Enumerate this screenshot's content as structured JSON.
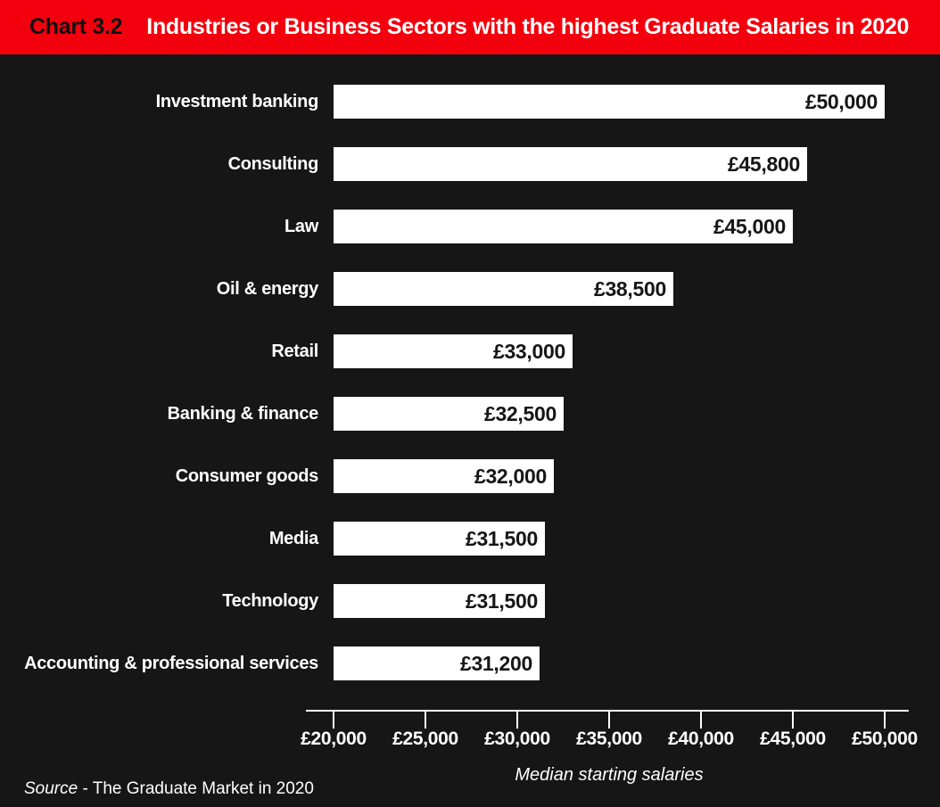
{
  "header": {
    "chart_label": "Chart 3.2",
    "title": "Industries or Business Sectors with the highest Graduate Salaries in 2020",
    "bg_color": "#f2000d"
  },
  "chart_data": {
    "type": "bar",
    "orientation": "horizontal",
    "title": "Industries or Business Sectors with the highest Graduate Salaries in 2020",
    "categories": [
      "Investment banking",
      "Consulting",
      "Law",
      "Oil & energy",
      "Retail",
      "Banking & finance",
      "Consumer goods",
      "Media",
      "Technology",
      "Accounting & professional services"
    ],
    "values": [
      50000,
      45800,
      45000,
      38500,
      33000,
      32500,
      32000,
      31500,
      31500,
      31200
    ],
    "value_labels": [
      "£50,000",
      "£45,800",
      "£45,000",
      "£38,500",
      "£33,000",
      "£32,500",
      "£32,000",
      "£31,500",
      "£31,500",
      "£31,200"
    ],
    "xlabel": "Median starting salaries",
    "x_ticks": [
      "£20,000",
      "£25,000",
      "£30,000",
      "£35,000",
      "£40,000",
      "£45,000",
      "£50,000"
    ],
    "x_tick_values": [
      20000,
      25000,
      30000,
      35000,
      40000,
      45000,
      50000
    ],
    "xlim": [
      20000,
      50000
    ],
    "grid": false,
    "legend": "none",
    "bar_color": "#ffffff",
    "value_label_color": "#161616",
    "background_color": "#161616"
  },
  "footer": {
    "source_prefix": "Source",
    "source_rest": " - The Graduate Market in 2020"
  }
}
